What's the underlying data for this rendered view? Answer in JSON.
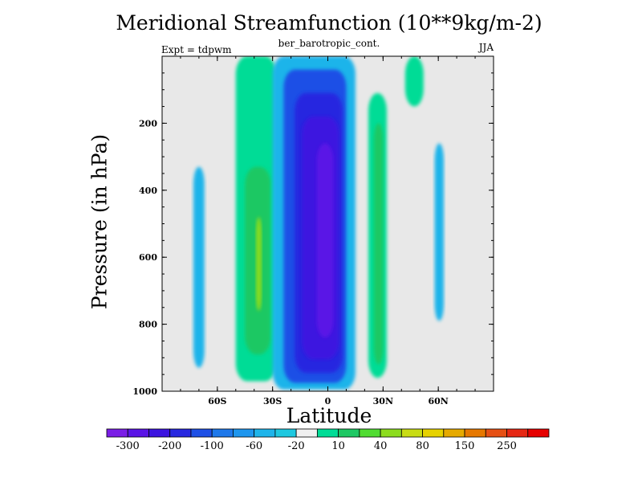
{
  "chart_data": {
    "type": "contour",
    "title": "Meridional Streamfunction (10**9kg/m-2)",
    "subtitle": "ber_barotropic_cont.",
    "left_label": "Expt = tdpwm",
    "right_label": "JJA",
    "xlabel": "Latitude",
    "ylabel": "Pressure (in hPa)",
    "xlim": [
      -90,
      90
    ],
    "ylim": [
      1000,
      0
    ],
    "x_ticks": [
      {
        "value": -60,
        "label": "60S"
      },
      {
        "value": -30,
        "label": "30S"
      },
      {
        "value": 0,
        "label": "0"
      },
      {
        "value": 30,
        "label": "30N"
      },
      {
        "value": 60,
        "label": "60N"
      }
    ],
    "y_ticks": [
      {
        "value": 200,
        "label": "200"
      },
      {
        "value": 400,
        "label": "400"
      },
      {
        "value": 600,
        "label": "600"
      },
      {
        "value": 800,
        "label": "800"
      },
      {
        "value": 1000,
        "label": "1000"
      }
    ],
    "background_color": "#e8e8e8",
    "colorbar": {
      "colors": [
        "#7a1ee6",
        "#5a14e6",
        "#3c14e0",
        "#2828e0",
        "#1e50e6",
        "#1e78ea",
        "#1e96ee",
        "#1eb4ea",
        "#1ec8e0",
        "#f0f0f0",
        "#00dc96",
        "#1ec864",
        "#50dc32",
        "#8cdc1e",
        "#c8dc14",
        "#e6d200",
        "#e6aa00",
        "#e67800",
        "#e65014",
        "#e62814",
        "#e60000"
      ],
      "labels": [
        "-300",
        "-200",
        "-100",
        "-60",
        "-20",
        "10",
        "40",
        "80",
        "150",
        "250"
      ]
    },
    "regions": [
      {
        "lat": [
          -50,
          -28
        ],
        "p": [
          0,
          970
        ],
        "value": 20
      },
      {
        "lat": [
          -45,
          -31
        ],
        "p": [
          330,
          890
        ],
        "value": 40
      },
      {
        "lat": [
          -39,
          -36
        ],
        "p": [
          480,
          760
        ],
        "value": 80
      },
      {
        "lat": [
          -73,
          -67
        ],
        "p": [
          330,
          930
        ],
        "value": -20
      },
      {
        "lat": [
          -30,
          15
        ],
        "p": [
          0,
          995
        ],
        "value": -20
      },
      {
        "lat": [
          -24,
          10
        ],
        "p": [
          40,
          975
        ],
        "value": -60
      },
      {
        "lat": [
          -18,
          8
        ],
        "p": [
          110,
          945
        ],
        "value": -100
      },
      {
        "lat": [
          -14,
          6
        ],
        "p": [
          180,
          905
        ],
        "value": -200
      },
      {
        "lat": [
          -6,
          3
        ],
        "p": [
          260,
          840
        ],
        "value": -300
      },
      {
        "lat": [
          22,
          32
        ],
        "p": [
          110,
          960
        ],
        "value": 20
      },
      {
        "lat": [
          25,
          30
        ],
        "p": [
          200,
          920
        ],
        "value": 40
      },
      {
        "lat": [
          42,
          52
        ],
        "p": [
          0,
          150
        ],
        "value": 10
      },
      {
        "lat": [
          58,
          63
        ],
        "p": [
          260,
          790
        ],
        "value": -20
      }
    ]
  }
}
